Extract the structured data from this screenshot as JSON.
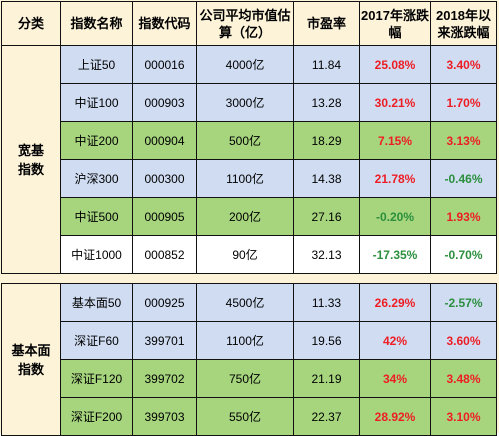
{
  "headers": {
    "category": "分类",
    "name": "指数名称",
    "code": "指数代码",
    "market_cap": "公司平均市值估算（亿）",
    "pe": "市盈率",
    "chg_2017": "2017年涨跌幅",
    "chg_2018": "2018年以来涨跌幅"
  },
  "groups": [
    {
      "category": "宽基指数",
      "rows": [
        {
          "name": "上证50",
          "code": "000016",
          "cap": "4000亿",
          "pe": "11.84",
          "chg_2017": "25.08%",
          "chg_2018": "3.40%",
          "fill": "blue",
          "color_2017": "red",
          "color_2018": "red"
        },
        {
          "name": "中证100",
          "code": "000903",
          "cap": "3000亿",
          "pe": "13.28",
          "chg_2017": "30.21%",
          "chg_2018": "1.70%",
          "fill": "blue",
          "color_2017": "red",
          "color_2018": "red"
        },
        {
          "name": "中证200",
          "code": "000904",
          "cap": "500亿",
          "pe": "18.29",
          "chg_2017": "7.15%",
          "chg_2018": "3.13%",
          "fill": "green",
          "color_2017": "red",
          "color_2018": "red"
        },
        {
          "name": "沪深300",
          "code": "000300",
          "cap": "1100亿",
          "pe": "14.38",
          "chg_2017": "21.78%",
          "chg_2018": "-0.46%",
          "fill": "blue",
          "color_2017": "red",
          "color_2018": "green"
        },
        {
          "name": "中证500",
          "code": "000905",
          "cap": "200亿",
          "pe": "27.16",
          "chg_2017": "-0.20%",
          "chg_2018": "1.93%",
          "fill": "green",
          "color_2017": "green",
          "color_2018": "red"
        },
        {
          "name": "中证1000",
          "code": "000852",
          "cap": "90亿",
          "pe": "32.13",
          "chg_2017": "-17.35%",
          "chg_2018": "-0.70%",
          "fill": "white",
          "color_2017": "green",
          "color_2018": "green"
        }
      ]
    },
    {
      "category": "基本面指数",
      "rows": [
        {
          "name": "基本面50",
          "code": "000925",
          "cap": "4500亿",
          "pe": "11.33",
          "chg_2017": "26.29%",
          "chg_2018": "-2.57%",
          "fill": "blue",
          "color_2017": "red",
          "color_2018": "green"
        },
        {
          "name": "深证F60",
          "code": "399701",
          "cap": "1100亿",
          "pe": "19.56",
          "chg_2017": "42%",
          "chg_2018": "3.60%",
          "fill": "blue",
          "color_2017": "red",
          "color_2018": "red"
        },
        {
          "name": "深证F120",
          "code": "399702",
          "cap": "750亿",
          "pe": "21.19",
          "chg_2017": "34%",
          "chg_2018": "3.48%",
          "fill": "green",
          "color_2017": "red",
          "color_2018": "red"
        },
        {
          "name": "深证F200",
          "code": "399703",
          "cap": "550亿",
          "pe": "22.37",
          "chg_2017": "28.92%",
          "chg_2018": "3.10%",
          "fill": "green",
          "color_2017": "red",
          "color_2018": "red"
        }
      ]
    }
  ],
  "colors": {
    "header_bg": "#fdf3d9",
    "blue_fill": "#cfdcf2",
    "green_fill": "#a6d57e",
    "white_fill": "#ffffff",
    "positive": "#ee1d24",
    "negative": "#2b8f3d"
  }
}
